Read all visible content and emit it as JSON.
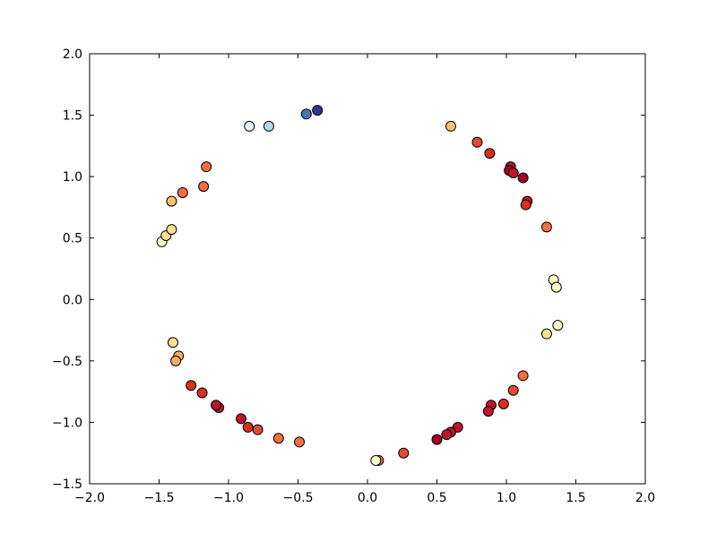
{
  "chart_data": {
    "type": "scatter",
    "title": "",
    "xlabel": "",
    "ylabel": "",
    "xlim": [
      -2.0,
      2.0
    ],
    "ylim": [
      -1.5,
      2.0
    ],
    "x_ticks": [
      -2.0,
      -1.5,
      -1.0,
      -0.5,
      0.0,
      0.5,
      1.0,
      1.5,
      2.0
    ],
    "y_ticks": [
      -1.5,
      -1.0,
      -0.5,
      0.0,
      0.5,
      1.0,
      1.5,
      2.0
    ],
    "x_tick_labels": [
      "−2.0",
      "−1.5",
      "−1.0",
      "−0.5",
      "0.0",
      "0.5",
      "1.0",
      "1.5",
      "2.0"
    ],
    "y_tick_labels": [
      "−1.5",
      "−1.0",
      "−0.5",
      "0.0",
      "0.5",
      "1.0",
      "1.5",
      "2.0"
    ],
    "grid": false,
    "legend": "none",
    "colormap": "RdYlBu",
    "marker_edge_color": "#000000",
    "points": [
      {
        "x": -0.85,
        "y": 1.41,
        "color": "#e0f3f8"
      },
      {
        "x": -0.71,
        "y": 1.41,
        "color": "#abd9e9"
      },
      {
        "x": -0.44,
        "y": 1.51,
        "color": "#4575b4"
      },
      {
        "x": -0.36,
        "y": 1.54,
        "color": "#313695"
      },
      {
        "x": 0.6,
        "y": 1.41,
        "color": "#fdbf6f"
      },
      {
        "x": 0.79,
        "y": 1.28,
        "color": "#e34a33"
      },
      {
        "x": 0.88,
        "y": 1.19,
        "color": "#d7301f"
      },
      {
        "x": 1.03,
        "y": 1.08,
        "color": "#b2182b"
      },
      {
        "x": 1.02,
        "y": 1.05,
        "color": "#a50026"
      },
      {
        "x": 1.05,
        "y": 1.03,
        "color": "#c0162b"
      },
      {
        "x": 1.12,
        "y": 0.99,
        "color": "#a50026"
      },
      {
        "x": 1.15,
        "y": 0.8,
        "color": "#c0162b"
      },
      {
        "x": 1.14,
        "y": 0.77,
        "color": "#d7301f"
      },
      {
        "x": 1.29,
        "y": 0.59,
        "color": "#f46d43"
      },
      {
        "x": 1.34,
        "y": 0.16,
        "color": "#ffffbf"
      },
      {
        "x": 1.36,
        "y": 0.1,
        "color": "#ffffbf"
      },
      {
        "x": 1.37,
        "y": -0.21,
        "color": "#ffffcc"
      },
      {
        "x": 1.29,
        "y": -0.28,
        "color": "#fee090"
      },
      {
        "x": 1.12,
        "y": -0.62,
        "color": "#f46d43"
      },
      {
        "x": 1.05,
        "y": -0.74,
        "color": "#e34a33"
      },
      {
        "x": 0.98,
        "y": -0.85,
        "color": "#d7301f"
      },
      {
        "x": 0.89,
        "y": -0.86,
        "color": "#c0162b"
      },
      {
        "x": 0.87,
        "y": -0.91,
        "color": "#c0162b"
      },
      {
        "x": 0.65,
        "y": -1.04,
        "color": "#c0162b"
      },
      {
        "x": 0.6,
        "y": -1.08,
        "color": "#b2182b"
      },
      {
        "x": 0.57,
        "y": -1.1,
        "color": "#c0162b"
      },
      {
        "x": 0.5,
        "y": -1.14,
        "color": "#a50026"
      },
      {
        "x": 0.26,
        "y": -1.25,
        "color": "#e34a33"
      },
      {
        "x": 0.08,
        "y": -1.31,
        "color": "#f46d43"
      },
      {
        "x": 0.06,
        "y": -1.31,
        "color": "#ffffcc"
      },
      {
        "x": -0.49,
        "y": -1.16,
        "color": "#f46d43"
      },
      {
        "x": -0.64,
        "y": -1.13,
        "color": "#f46d43"
      },
      {
        "x": -0.79,
        "y": -1.06,
        "color": "#e34a33"
      },
      {
        "x": -0.86,
        "y": -1.04,
        "color": "#d7301f"
      },
      {
        "x": -0.91,
        "y": -0.97,
        "color": "#c0162b"
      },
      {
        "x": -1.07,
        "y": -0.88,
        "color": "#c0162b"
      },
      {
        "x": -1.09,
        "y": -0.86,
        "color": "#b2182b"
      },
      {
        "x": -1.19,
        "y": -0.76,
        "color": "#d7301f"
      },
      {
        "x": -1.27,
        "y": -0.7,
        "color": "#d7301f"
      },
      {
        "x": -1.36,
        "y": -0.46,
        "color": "#fdae61"
      },
      {
        "x": -1.38,
        "y": -0.5,
        "color": "#fdae61"
      },
      {
        "x": -1.4,
        "y": -0.35,
        "color": "#fee090"
      },
      {
        "x": -1.48,
        "y": 0.47,
        "color": "#ffffcc"
      },
      {
        "x": -1.45,
        "y": 0.52,
        "color": "#fee090"
      },
      {
        "x": -1.41,
        "y": 0.57,
        "color": "#fee090"
      },
      {
        "x": -1.41,
        "y": 0.8,
        "color": "#fdbf6f"
      },
      {
        "x": -1.33,
        "y": 0.87,
        "color": "#f46d43"
      },
      {
        "x": -1.18,
        "y": 0.92,
        "color": "#f46d43"
      },
      {
        "x": -1.16,
        "y": 1.08,
        "color": "#f46d43"
      }
    ]
  }
}
